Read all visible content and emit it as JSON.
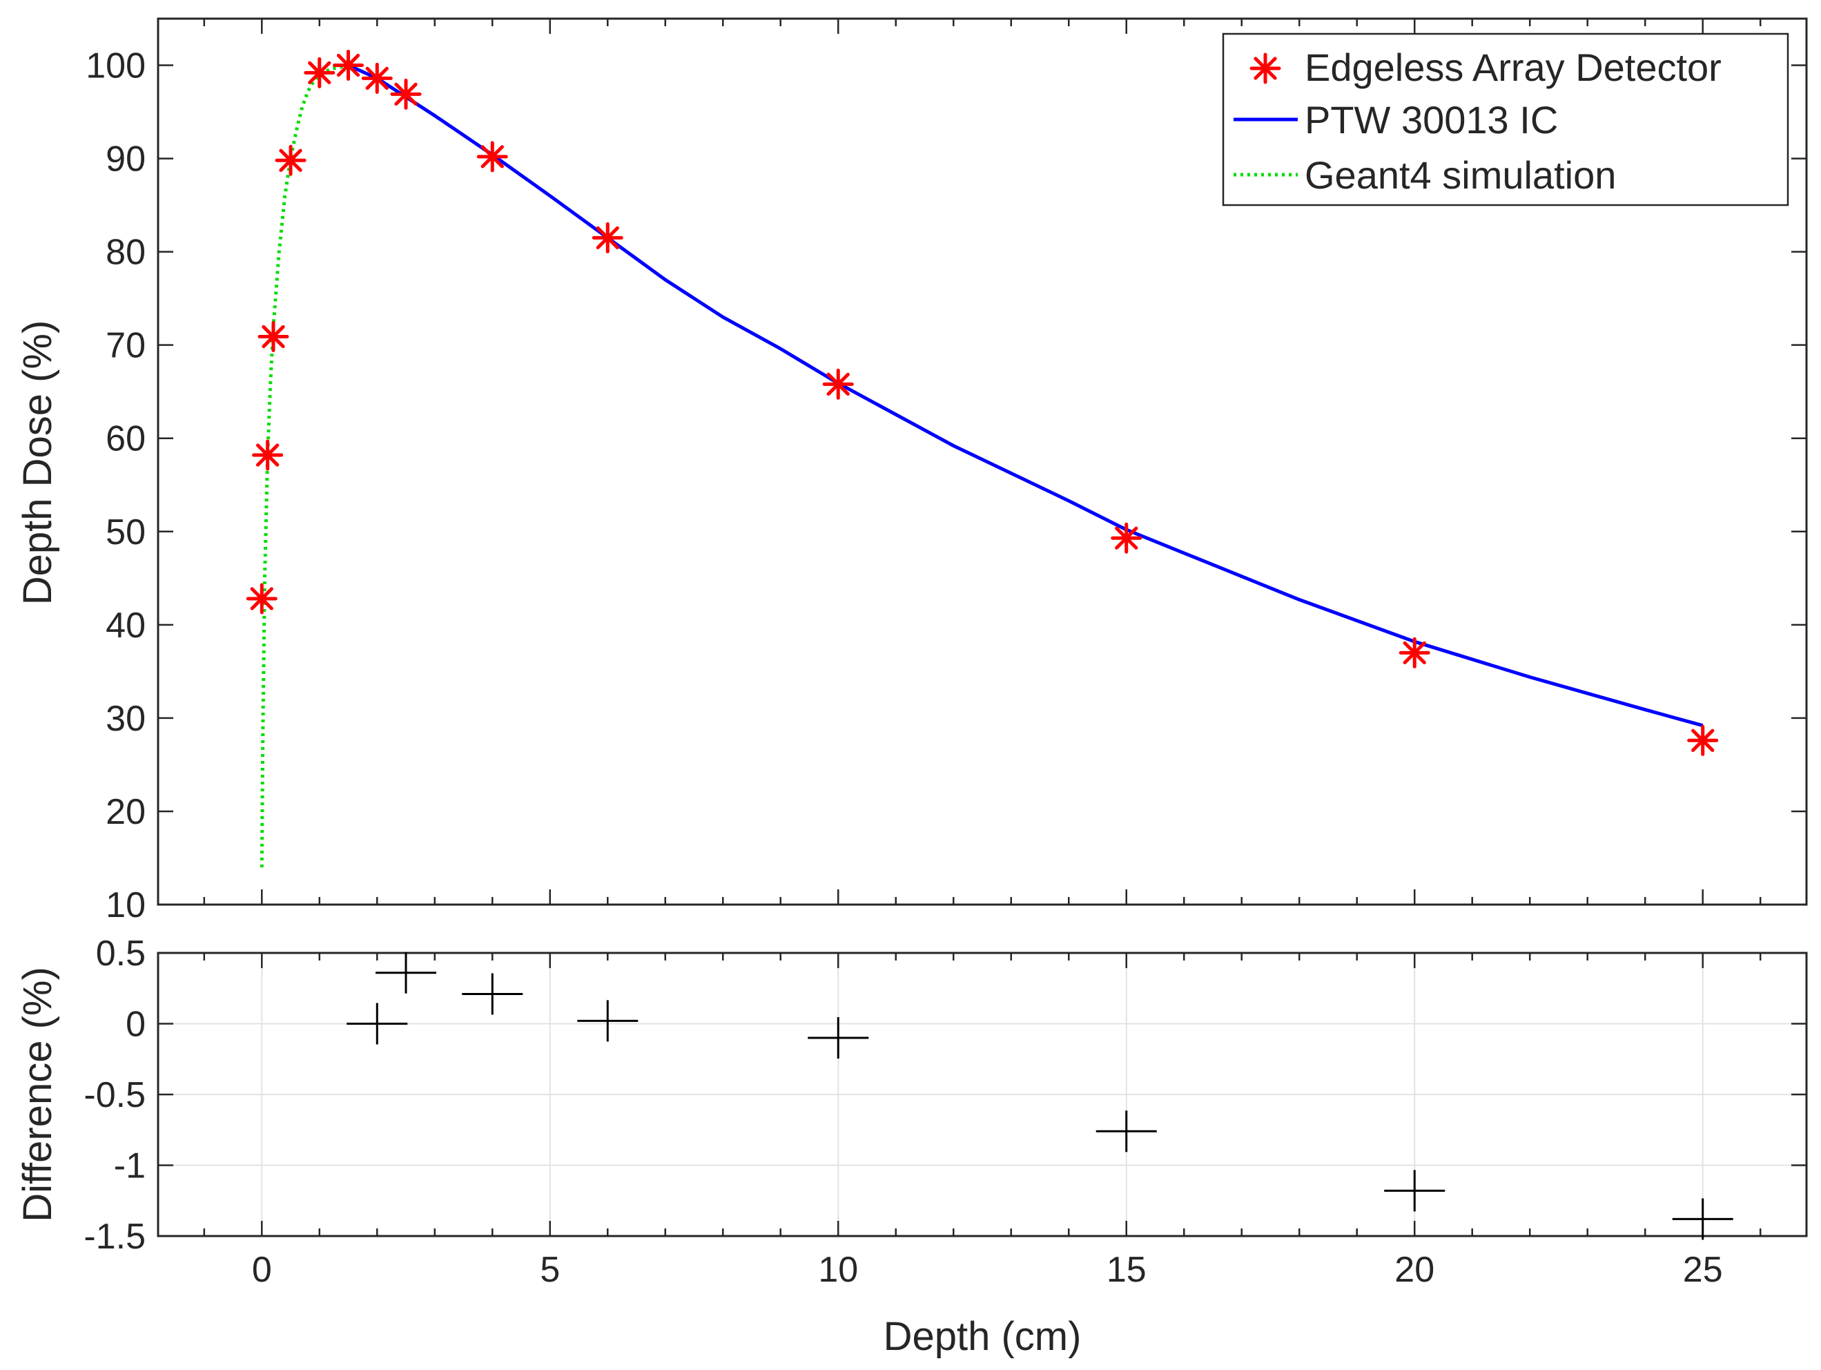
{
  "chart_data": [
    {
      "type": "line",
      "panel": "top",
      "xlabel": "",
      "ylabel": "Depth Dose (%)",
      "xlim": [
        -1.8,
        26.8
      ],
      "ylim": [
        10,
        105
      ],
      "yticks": [
        10,
        20,
        30,
        40,
        50,
        60,
        70,
        80,
        90,
        100
      ],
      "xticks": [
        0,
        5,
        10,
        15,
        20,
        25
      ],
      "grid": false,
      "legend_position": "top-right",
      "colors": {
        "edgeless": "#ff0000",
        "ptw": "#0000ff",
        "geant4": "#00dd00"
      },
      "series": [
        {
          "name": "Edgeless Array Detector",
          "style": "markers-asterisk",
          "x": [
            0,
            0.1,
            0.2,
            0.5,
            1.0,
            1.5,
            2.0,
            2.5,
            4.0,
            6.0,
            10.0,
            15.0,
            20.0,
            25.0
          ],
          "y": [
            42.8,
            58.2,
            70.9,
            89.8,
            99.2,
            100.0,
            98.6,
            96.9,
            90.2,
            81.5,
            65.8,
            49.3,
            37.0,
            27.6
          ]
        },
        {
          "name": "PTW 30013 IC",
          "style": "solid",
          "x": [
            1.5,
            2.0,
            2.5,
            3.0,
            4.0,
            5.0,
            6.0,
            7.0,
            8.0,
            9.0,
            10.0,
            12.0,
            14.0,
            15.0,
            16.0,
            18.0,
            20.0,
            22.0,
            24.0,
            25.0
          ],
          "y": [
            100.0,
            98.6,
            96.6,
            94.6,
            90.4,
            86.0,
            81.5,
            77.0,
            73.0,
            69.6,
            65.9,
            59.2,
            53.3,
            50.2,
            47.7,
            42.7,
            38.2,
            34.4,
            30.9,
            29.2
          ]
        },
        {
          "name": "Geant4 simulation",
          "style": "dotted",
          "x": [
            0,
            0.02,
            0.05,
            0.1,
            0.15,
            0.2,
            0.3,
            0.4,
            0.5,
            0.6,
            0.7,
            0.8,
            0.9,
            1.0,
            1.2,
            1.5
          ],
          "y": [
            14.0,
            30.0,
            45.0,
            58.0,
            66.0,
            72.0,
            80.0,
            86.0,
            90.0,
            93.0,
            95.5,
            97.2,
            98.3,
            99.0,
            99.6,
            100.0
          ]
        }
      ]
    },
    {
      "type": "scatter",
      "panel": "bottom",
      "xlabel": "Depth (cm)",
      "ylabel": "Difference (%)",
      "xlim": [
        -1.8,
        26.8
      ],
      "ylim": [
        -1.5,
        0.5
      ],
      "yticks": [
        -1.5,
        -1,
        -0.5,
        0,
        0.5
      ],
      "ytick_labels": [
        "-1.5",
        "-1",
        "-0.5",
        "0",
        "0.5"
      ],
      "xticks": [
        0,
        5,
        10,
        15,
        20,
        25
      ],
      "grid": true,
      "colors": {
        "marker": "#000000"
      },
      "series": [
        {
          "name": "Difference",
          "style": "markers-plus",
          "x": [
            2.0,
            2.5,
            4.0,
            6.0,
            10.0,
            15.0,
            20.0,
            25.0
          ],
          "y": [
            0.0,
            0.36,
            0.21,
            0.02,
            -0.1,
            -0.76,
            -1.18,
            -1.38
          ]
        }
      ]
    }
  ]
}
